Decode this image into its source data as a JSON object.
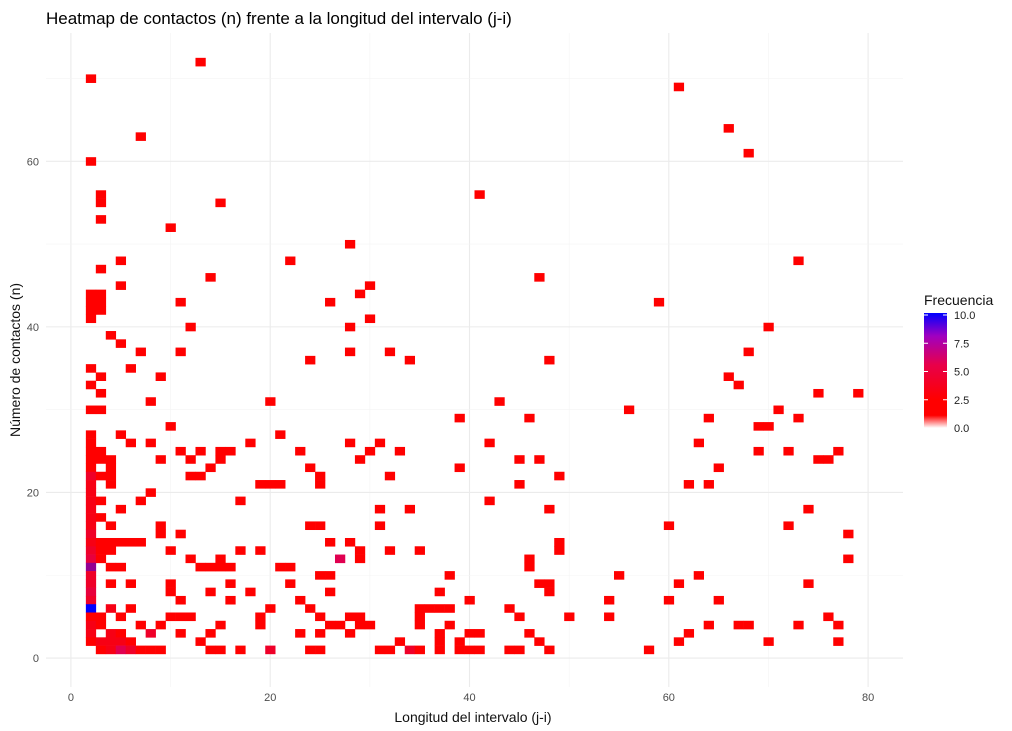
{
  "chart_data": {
    "type": "heatmap",
    "title": "Heatmap de contactos (n) frente a la longitud del intervalo (j-i)",
    "xlabel": "Longitud del intervalo (j-i)",
    "ylabel": "Número de contactos (n)",
    "xlim": [
      -2.5,
      83.5
    ],
    "ylim": [
      -3.5,
      75.5
    ],
    "x_ticks": [
      0,
      20,
      40,
      60,
      80
    ],
    "y_ticks": [
      0,
      20,
      40,
      60
    ],
    "grid": true,
    "legend": {
      "title": "Frecuencia",
      "position": "right",
      "ticks": [
        0.0,
        2.5,
        5.0,
        7.5,
        10.0
      ],
      "tick_labels": [
        "0.0",
        "2.5",
        "5.0",
        "7.5",
        "10.0"
      ],
      "colors": [
        "#ffffff",
        "#ff0000",
        "#0000ff"
      ]
    },
    "cells": [
      [
        2,
        70
      ],
      [
        13,
        72
      ],
      [
        61,
        69
      ],
      [
        66,
        64
      ],
      [
        7,
        63
      ],
      [
        68,
        61
      ],
      [
        2,
        60
      ],
      [
        41,
        56
      ],
      [
        3,
        56
      ],
      [
        3,
        55
      ],
      [
        15,
        55
      ],
      [
        3,
        53
      ],
      [
        10,
        52
      ],
      [
        28,
        50
      ],
      [
        5,
        48
      ],
      [
        22,
        48
      ],
      [
        73,
        48
      ],
      [
        3,
        47
      ],
      [
        47,
        46
      ],
      [
        14,
        46
      ],
      [
        5,
        45
      ],
      [
        30,
        45
      ],
      [
        2,
        44
      ],
      [
        3,
        44
      ],
      [
        29,
        44
      ],
      [
        2,
        43
      ],
      [
        3,
        43
      ],
      [
        11,
        43
      ],
      [
        26,
        43
      ],
      [
        59,
        43
      ],
      [
        2,
        42
      ],
      [
        3,
        42
      ],
      [
        2,
        41
      ],
      [
        30,
        41
      ],
      [
        12,
        40
      ],
      [
        28,
        40
      ],
      [
        70,
        40
      ],
      [
        4,
        39
      ],
      [
        5,
        38
      ],
      [
        7,
        37
      ],
      [
        11,
        37
      ],
      [
        28,
        37
      ],
      [
        32,
        37
      ],
      [
        68,
        37
      ],
      [
        24,
        36
      ],
      [
        34,
        36
      ],
      [
        48,
        36
      ],
      [
        2,
        35
      ],
      [
        6,
        35
      ],
      [
        3,
        34
      ],
      [
        9,
        34
      ],
      [
        66,
        34
      ],
      [
        67,
        33
      ],
      [
        2,
        33
      ],
      [
        3,
        32
      ],
      [
        75,
        32
      ],
      [
        79,
        32
      ],
      [
        8,
        31
      ],
      [
        20,
        31
      ],
      [
        43,
        31
      ],
      [
        2,
        30
      ],
      [
        3,
        30
      ],
      [
        56,
        30
      ],
      [
        71,
        30
      ],
      [
        39,
        29
      ],
      [
        46,
        29
      ],
      [
        64,
        29
      ],
      [
        73,
        29
      ],
      [
        10,
        28
      ],
      [
        69,
        28
      ],
      [
        70,
        28
      ],
      [
        2,
        27
      ],
      [
        5,
        27
      ],
      [
        21,
        27
      ],
      [
        2,
        26
      ],
      [
        6,
        26
      ],
      [
        8,
        26
      ],
      [
        18,
        26
      ],
      [
        28,
        26
      ],
      [
        31,
        26
      ],
      [
        42,
        26
      ],
      [
        63,
        26
      ],
      [
        2,
        25
      ],
      [
        3,
        25
      ],
      [
        11,
        25
      ],
      [
        13,
        25
      ],
      [
        15,
        25
      ],
      [
        16,
        25
      ],
      [
        23,
        25
      ],
      [
        30,
        25
      ],
      [
        33,
        25
      ],
      [
        69,
        25
      ],
      [
        72,
        25
      ],
      [
        77,
        25
      ],
      [
        2,
        24
      ],
      [
        3,
        24
      ],
      [
        4,
        24
      ],
      [
        9,
        24
      ],
      [
        12,
        24
      ],
      [
        15,
        24
      ],
      [
        29,
        24
      ],
      [
        45,
        24
      ],
      [
        47,
        24
      ],
      [
        75,
        24
      ],
      [
        76,
        24
      ],
      [
        2,
        23
      ],
      [
        4,
        23
      ],
      [
        14,
        23
      ],
      [
        24,
        23
      ],
      [
        39,
        23
      ],
      [
        65,
        23
      ],
      [
        2,
        22
      ],
      [
        3,
        22
      ],
      [
        4,
        22
      ],
      [
        12,
        22
      ],
      [
        13,
        22
      ],
      [
        25,
        22
      ],
      [
        32,
        22
      ],
      [
        49,
        22
      ],
      [
        2,
        21
      ],
      [
        4,
        21
      ],
      [
        19,
        21
      ],
      [
        20,
        21
      ],
      [
        21,
        21
      ],
      [
        25,
        21
      ],
      [
        45,
        21
      ],
      [
        62,
        21
      ],
      [
        64,
        21
      ],
      [
        2,
        20
      ],
      [
        8,
        20
      ],
      [
        2,
        19
      ],
      [
        3,
        19
      ],
      [
        7,
        19
      ],
      [
        17,
        19
      ],
      [
        42,
        19
      ],
      [
        2,
        18
      ],
      [
        5,
        18
      ],
      [
        31,
        18
      ],
      [
        34,
        18
      ],
      [
        48,
        18
      ],
      [
        74,
        18
      ],
      [
        2,
        17
      ],
      [
        3,
        17
      ],
      [
        2,
        16
      ],
      [
        4,
        16
      ],
      [
        9,
        16
      ],
      [
        24,
        16
      ],
      [
        25,
        16
      ],
      [
        31,
        16
      ],
      [
        60,
        16
      ],
      [
        72,
        16
      ],
      [
        2,
        15
      ],
      [
        9,
        15
      ],
      [
        11,
        15
      ],
      [
        78,
        15
      ],
      [
        2,
        14
      ],
      [
        3,
        14
      ],
      [
        4,
        14
      ],
      [
        5,
        14
      ],
      [
        6,
        14
      ],
      [
        7,
        14
      ],
      [
        26,
        14
      ],
      [
        28,
        14
      ],
      [
        49,
        14
      ],
      [
        2,
        13
      ],
      [
        3,
        13
      ],
      [
        4,
        13
      ],
      [
        10,
        13
      ],
      [
        17,
        13
      ],
      [
        19,
        13
      ],
      [
        29,
        13
      ],
      [
        32,
        13
      ],
      [
        35,
        13
      ],
      [
        49,
        13
      ],
      [
        2,
        12
      ],
      [
        3,
        12
      ],
      [
        12,
        12
      ],
      [
        15,
        12
      ],
      [
        27,
        12
      ],
      [
        29,
        12
      ],
      [
        46,
        12
      ],
      [
        78,
        12
      ],
      [
        2,
        11
      ],
      [
        4,
        11
      ],
      [
        5,
        11
      ],
      [
        13,
        11
      ],
      [
        14,
        11
      ],
      [
        15,
        11
      ],
      [
        16,
        11
      ],
      [
        21,
        11
      ],
      [
        22,
        11
      ],
      [
        46,
        11
      ],
      [
        2,
        10
      ],
      [
        25,
        10
      ],
      [
        26,
        10
      ],
      [
        38,
        10
      ],
      [
        55,
        10
      ],
      [
        63,
        10
      ],
      [
        2,
        9
      ],
      [
        4,
        9
      ],
      [
        6,
        9
      ],
      [
        10,
        9
      ],
      [
        16,
        9
      ],
      [
        22,
        9
      ],
      [
        47,
        9
      ],
      [
        48,
        9
      ],
      [
        61,
        9
      ],
      [
        74,
        9
      ],
      [
        2,
        8
      ],
      [
        10,
        8
      ],
      [
        14,
        8
      ],
      [
        18,
        8
      ],
      [
        26,
        8
      ],
      [
        37,
        8
      ],
      [
        48,
        8
      ],
      [
        2,
        7
      ],
      [
        11,
        7
      ],
      [
        16,
        7
      ],
      [
        23,
        7
      ],
      [
        40,
        7
      ],
      [
        54,
        7
      ],
      [
        60,
        7
      ],
      [
        65,
        7
      ],
      [
        2,
        6
      ],
      [
        4,
        6
      ],
      [
        6,
        6
      ],
      [
        20,
        6
      ],
      [
        24,
        6
      ],
      [
        35,
        6
      ],
      [
        36,
        6
      ],
      [
        37,
        6
      ],
      [
        38,
        6
      ],
      [
        44,
        6
      ],
      [
        2,
        5
      ],
      [
        3,
        5
      ],
      [
        5,
        5
      ],
      [
        10,
        5
      ],
      [
        11,
        5
      ],
      [
        12,
        5
      ],
      [
        19,
        5
      ],
      [
        25,
        5
      ],
      [
        28,
        5
      ],
      [
        29,
        5
      ],
      [
        35,
        5
      ],
      [
        45,
        5
      ],
      [
        50,
        5
      ],
      [
        54,
        5
      ],
      [
        76,
        5
      ],
      [
        2,
        4
      ],
      [
        3,
        4
      ],
      [
        7,
        4
      ],
      [
        9,
        4
      ],
      [
        15,
        4
      ],
      [
        19,
        4
      ],
      [
        26,
        4
      ],
      [
        27,
        4
      ],
      [
        29,
        4
      ],
      [
        30,
        4
      ],
      [
        35,
        4
      ],
      [
        38,
        4
      ],
      [
        64,
        4
      ],
      [
        67,
        4
      ],
      [
        68,
        4
      ],
      [
        73,
        4
      ],
      [
        77,
        4
      ],
      [
        2,
        3
      ],
      [
        4,
        3
      ],
      [
        5,
        3
      ],
      [
        8,
        3
      ],
      [
        11,
        3
      ],
      [
        14,
        3
      ],
      [
        23,
        3
      ],
      [
        25,
        3
      ],
      [
        28,
        3
      ],
      [
        37,
        3
      ],
      [
        40,
        3
      ],
      [
        41,
        3
      ],
      [
        46,
        3
      ],
      [
        62,
        3
      ],
      [
        2,
        2
      ],
      [
        3,
        2
      ],
      [
        4,
        2
      ],
      [
        5,
        2
      ],
      [
        6,
        2
      ],
      [
        13,
        2
      ],
      [
        33,
        2
      ],
      [
        37,
        2
      ],
      [
        39,
        2
      ],
      [
        47,
        2
      ],
      [
        61,
        2
      ],
      [
        70,
        2
      ],
      [
        77,
        2
      ],
      [
        3,
        1
      ],
      [
        4,
        1
      ],
      [
        5,
        1
      ],
      [
        6,
        1
      ],
      [
        7,
        1
      ],
      [
        8,
        1
      ],
      [
        9,
        1
      ],
      [
        14,
        1
      ],
      [
        15,
        1
      ],
      [
        17,
        1
      ],
      [
        20,
        1
      ],
      [
        24,
        1
      ],
      [
        25,
        1
      ],
      [
        31,
        1
      ],
      [
        32,
        1
      ],
      [
        34,
        1
      ],
      [
        35,
        1
      ],
      [
        37,
        1
      ],
      [
        39,
        1
      ],
      [
        40,
        1
      ],
      [
        41,
        1
      ],
      [
        44,
        1
      ],
      [
        45,
        1
      ],
      [
        48,
        1
      ],
      [
        58,
        1
      ]
    ],
    "cell_values_nonunit": [
      [
        [
          2,
          6
        ],
        10
      ],
      [
        [
          2,
          11
        ],
        7
      ],
      [
        [
          2,
          12
        ],
        4
      ],
      [
        [
          2,
          13
        ],
        3
      ],
      [
        [
          2,
          8
        ],
        4
      ],
      [
        [
          2,
          7
        ],
        3
      ],
      [
        [
          2,
          9
        ],
        3
      ],
      [
        [
          2,
          10
        ],
        3
      ],
      [
        [
          2,
          15
        ],
        3
      ],
      [
        [
          2,
          16
        ],
        2
      ],
      [
        [
          2,
          17
        ],
        2
      ],
      [
        [
          2,
          18
        ],
        2
      ],
      [
        [
          2,
          19
        ],
        2
      ],
      [
        [
          2,
          20
        ],
        2
      ],
      [
        [
          2,
          21
        ],
        2
      ],
      [
        [
          2,
          22
        ],
        3
      ],
      [
        [
          2,
          14
        ],
        2
      ],
      [
        [
          2,
          3
        ],
        2
      ],
      [
        [
          2,
          4
        ],
        2
      ],
      [
        [
          5,
          1
        ],
        5
      ],
      [
        [
          6,
          1
        ],
        3
      ],
      [
        [
          4,
          1
        ],
        2
      ],
      [
        [
          4,
          2
        ],
        2
      ],
      [
        [
          4,
          3
        ],
        2
      ],
      [
        [
          8,
          3
        ],
        3
      ],
      [
        [
          27,
          12
        ],
        5
      ],
      [
        [
          20,
          1
        ],
        3
      ],
      [
        [
          3,
          2
        ],
        2
      ],
      [
        [
          4,
          6
        ],
        2
      ],
      [
        [
          34,
          1
        ],
        3
      ],
      [
        [
          5,
          2
        ],
        2
      ]
    ]
  }
}
